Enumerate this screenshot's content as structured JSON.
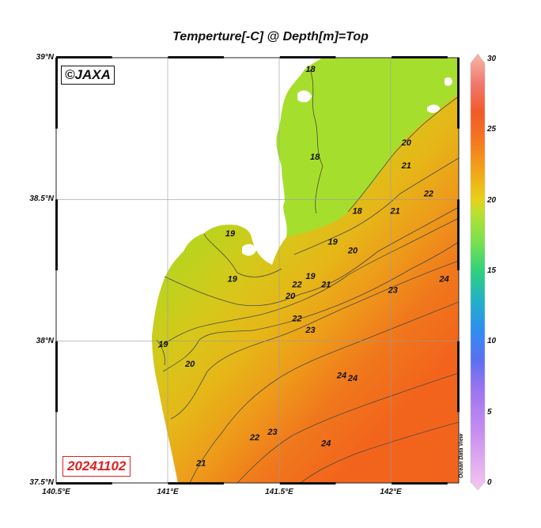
{
  "title": "Temperture[-C] @ Depth[m]=Top",
  "copyright": "©JAXA",
  "date": "20241102",
  "watermark": "Ocean Data View",
  "colors": {
    "land": "#ffffff",
    "sea_19": "#b8d41e",
    "sea_20": "#d6c81a",
    "sea_21": "#e6b618",
    "sea_22": "#ee9a1a",
    "sea_23": "#f0781c",
    "sea_24": "#f2641c",
    "north_cool": "#a6de2e",
    "contour": "#4a4a3a",
    "grid": "#9a9a9a",
    "date_red": "#e02020"
  },
  "map": {
    "lon_range": [
      140.5,
      142.3
    ],
    "lat_range": [
      37.5,
      39.0
    ],
    "lon_ticks": [
      {
        "value": 140.5,
        "label": "140.5°E"
      },
      {
        "value": 141.0,
        "label": "141°E"
      },
      {
        "value": 141.5,
        "label": "141.5°E"
      },
      {
        "value": 142.0,
        "label": "142°E"
      }
    ],
    "lat_ticks": [
      {
        "value": 39.0,
        "label": "39°N"
      },
      {
        "value": 38.5,
        "label": "38.5°N"
      },
      {
        "value": 38.0,
        "label": "38°N"
      },
      {
        "value": 37.5,
        "label": "37.5°N"
      }
    ],
    "contour_labels": [
      {
        "text": "18",
        "lon": 141.64,
        "lat": 38.95
      },
      {
        "text": "18",
        "lon": 141.66,
        "lat": 38.64
      },
      {
        "text": "18",
        "lon": 141.85,
        "lat": 38.45
      },
      {
        "text": "20",
        "lon": 142.07,
        "lat": 38.69
      },
      {
        "text": "21",
        "lon": 142.07,
        "lat": 38.61
      },
      {
        "text": "19",
        "lon": 141.74,
        "lat": 38.34
      },
      {
        "text": "21",
        "lon": 142.02,
        "lat": 38.45
      },
      {
        "text": "22",
        "lon": 142.17,
        "lat": 38.51
      },
      {
        "text": "19",
        "lon": 141.28,
        "lat": 38.37
      },
      {
        "text": "19",
        "lon": 141.29,
        "lat": 38.21
      },
      {
        "text": "20",
        "lon": 141.83,
        "lat": 38.31
      },
      {
        "text": "19",
        "lon": 141.64,
        "lat": 38.22
      },
      {
        "text": "22",
        "lon": 141.58,
        "lat": 38.19
      },
      {
        "text": "21",
        "lon": 141.71,
        "lat": 38.19
      },
      {
        "text": "23",
        "lon": 142.01,
        "lat": 38.17
      },
      {
        "text": "24",
        "lon": 142.24,
        "lat": 38.21
      },
      {
        "text": "20",
        "lon": 141.55,
        "lat": 38.15
      },
      {
        "text": "19",
        "lon": 140.98,
        "lat": 37.98
      },
      {
        "text": "22",
        "lon": 141.58,
        "lat": 38.07
      },
      {
        "text": "23",
        "lon": 141.64,
        "lat": 38.03
      },
      {
        "text": "20",
        "lon": 141.1,
        "lat": 37.91
      },
      {
        "text": "24",
        "lon": 141.78,
        "lat": 37.87
      },
      {
        "text": "24",
        "lon": 141.83,
        "lat": 37.86
      },
      {
        "text": "22",
        "lon": 141.39,
        "lat": 37.65
      },
      {
        "text": "23",
        "lon": 141.47,
        "lat": 37.67
      },
      {
        "text": "24",
        "lon": 141.71,
        "lat": 37.63
      },
      {
        "text": "21",
        "lon": 141.15,
        "lat": 37.56
      }
    ]
  },
  "colorbar": {
    "min": 0,
    "max": 30,
    "ticks": [
      {
        "value": 30,
        "label": "30"
      },
      {
        "value": 25,
        "label": "25"
      },
      {
        "value": 20,
        "label": "20"
      },
      {
        "value": 15,
        "label": "15"
      },
      {
        "value": 10,
        "label": "10"
      },
      {
        "value": 5,
        "label": "5"
      },
      {
        "value": 0,
        "label": "0"
      }
    ],
    "stops": [
      {
        "value": 0,
        "color": "#f6c8f0"
      },
      {
        "value": 4,
        "color": "#c88ef0"
      },
      {
        "value": 7,
        "color": "#9a74f0"
      },
      {
        "value": 9,
        "color": "#5a70f0"
      },
      {
        "value": 11,
        "color": "#2e8ef0"
      },
      {
        "value": 13,
        "color": "#22b0c8"
      },
      {
        "value": 15,
        "color": "#2ed080"
      },
      {
        "value": 17,
        "color": "#78e050"
      },
      {
        "value": 19,
        "color": "#b8e030"
      },
      {
        "value": 20,
        "color": "#e8d01a"
      },
      {
        "value": 22,
        "color": "#f2a418"
      },
      {
        "value": 24,
        "color": "#f47820"
      },
      {
        "value": 26,
        "color": "#f25a28"
      },
      {
        "value": 28,
        "color": "#f07a70"
      },
      {
        "value": 30,
        "color": "#f6b8a8"
      }
    ]
  }
}
